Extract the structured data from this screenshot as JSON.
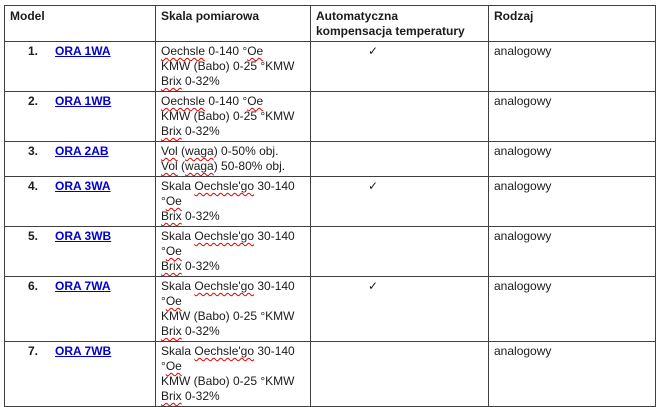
{
  "colors": {
    "link_blue": "#0000CD",
    "spellcheck_red": "#E00000",
    "border": "#3F3F3F"
  },
  "table": {
    "check_glyph": "✓",
    "headers": {
      "model": "Model",
      "skala": "Skala pomiarowa",
      "atc_line1": "Automatyczna",
      "atc_line2": "kompensacja temperatury",
      "rodzaj": "Rodzaj"
    },
    "rows": [
      {
        "num": "1.",
        "model": "ORA 1WA",
        "atc": true,
        "rodzaj": "analogowy",
        "skala_lines": [
          [
            {
              "t": "Oechsle",
              "sp": true
            },
            {
              "t": " 0-140 °"
            },
            {
              "t": "Oe",
              "sp": true
            }
          ],
          [
            {
              "t": "KMW (Babo) 0-25 °KMW"
            }
          ],
          [
            {
              "t": "Brix",
              "sp": true
            },
            {
              "t": " 0-32%"
            }
          ]
        ]
      },
      {
        "num": "2.",
        "model": "ORA 1WB",
        "atc": false,
        "rodzaj": "analogowy",
        "skala_lines": [
          [
            {
              "t": "Oechsle",
              "sp": true
            },
            {
              "t": " 0-140 °"
            },
            {
              "t": "Oe",
              "sp": true
            }
          ],
          [
            {
              "t": "KMW (Babo) 0-25 °KMW"
            }
          ],
          [
            {
              "t": "Brix",
              "sp": true
            },
            {
              "t": " 0-32%"
            }
          ]
        ]
      },
      {
        "num": "3.",
        "model": "ORA 2AB",
        "atc": false,
        "rodzaj": "analogowy",
        "skala_lines": [
          [
            {
              "t": "Vol",
              "sp": true
            },
            {
              "t": " ("
            },
            {
              "t": "waga",
              "sp": true
            },
            {
              "t": ") 0-50% obj."
            }
          ],
          [
            {
              "t": "Vol",
              "sp": true
            },
            {
              "t": " ("
            },
            {
              "t": "waga",
              "sp": true
            },
            {
              "t": ") 50-80% obj."
            }
          ]
        ]
      },
      {
        "num": "4.",
        "model": "ORA 3WA",
        "atc": true,
        "rodzaj": "analogowy",
        "skala_lines": [
          [
            {
              "t": "Skala "
            },
            {
              "t": "Oechsle'go",
              "sp": true
            },
            {
              "t": " 30-140"
            }
          ],
          [
            {
              "t": "°"
            },
            {
              "t": "Oe",
              "sp": true
            }
          ],
          [
            {
              "t": "Brix",
              "sp": true
            },
            {
              "t": " 0-32%"
            }
          ]
        ]
      },
      {
        "num": "5.",
        "model": "ORA 3WB",
        "atc": false,
        "rodzaj": "analogowy",
        "skala_lines": [
          [
            {
              "t": "Skala "
            },
            {
              "t": "Oechsle'go",
              "sp": true
            },
            {
              "t": " 30-140"
            }
          ],
          [
            {
              "t": "°"
            },
            {
              "t": "Oe",
              "sp": true
            }
          ],
          [
            {
              "t": "Brix",
              "sp": true
            },
            {
              "t": " 0-32%"
            }
          ]
        ]
      },
      {
        "num": "6.",
        "model": "ORA 7WA",
        "atc": true,
        "rodzaj": "analogowy",
        "skala_lines": [
          [
            {
              "t": "Skala "
            },
            {
              "t": "Oechsle'go",
              "sp": true
            },
            {
              "t": " 30-140"
            }
          ],
          [
            {
              "t": "°"
            },
            {
              "t": "Oe",
              "sp": true
            }
          ],
          [
            {
              "t": "KMW (Babo) 0-25 °KMW"
            }
          ],
          [
            {
              "t": "Brix",
              "sp": true
            },
            {
              "t": " 0-32%"
            }
          ]
        ]
      },
      {
        "num": "7.",
        "model": "ORA 7WB",
        "atc": false,
        "rodzaj": "analogowy",
        "skala_lines": [
          [
            {
              "t": "Skala "
            },
            {
              "t": "Oechsle'go",
              "sp": true
            },
            {
              "t": " 30-140"
            }
          ],
          [
            {
              "t": "°"
            },
            {
              "t": "Oe",
              "sp": true
            }
          ],
          [
            {
              "t": "KMW (Babo) 0-25 °KMW"
            }
          ],
          [
            {
              "t": "Brix",
              "sp": true
            },
            {
              "t": " 0-32%"
            }
          ]
        ]
      }
    ]
  }
}
